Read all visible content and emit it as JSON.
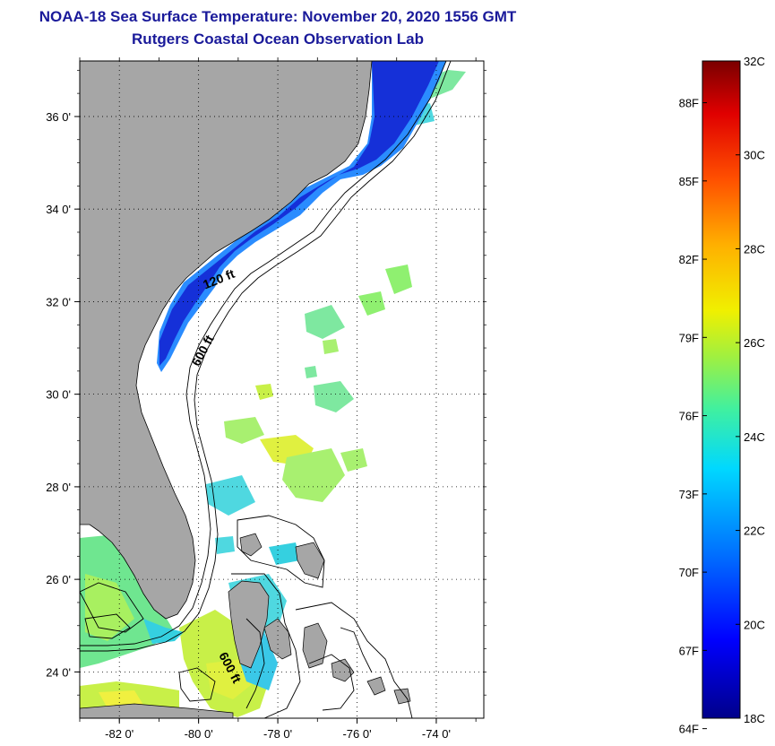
{
  "header": {
    "title": "NOAA-18 Sea Surface Temperature:  November 20, 2020 1556 GMT",
    "subtitle": "Rutgers Coastal Ocean Observation Lab"
  },
  "map": {
    "lon_ticks": [
      {
        "value": -82,
        "label": "-82 0'"
      },
      {
        "value": -80,
        "label": "-80 0'"
      },
      {
        "value": -78,
        "label": "-78 0'"
      },
      {
        "value": -76,
        "label": "-76 0'"
      },
      {
        "value": -74,
        "label": "-74 0'"
      }
    ],
    "lat_ticks": [
      {
        "value": 36,
        "label": "36 0'"
      },
      {
        "value": 34,
        "label": "34 0'"
      },
      {
        "value": 32,
        "label": "32 0'"
      },
      {
        "value": 30,
        "label": "30 0'"
      },
      {
        "value": 28,
        "label": "28 0'"
      },
      {
        "value": 26,
        "label": "26 0'"
      },
      {
        "value": 24,
        "label": "24 0'"
      }
    ],
    "contour_labels": [
      {
        "text": "120 ft",
        "lon": -79.45,
        "lat": 32.4,
        "rotate": -22
      },
      {
        "text": "600 ft",
        "lon": -79.8,
        "lat": 30.9,
        "rotate": -62
      },
      {
        "text": "600 ft",
        "lon": -79.3,
        "lat": 24.05,
        "rotate": 62
      }
    ],
    "colors": {
      "land": "#a6a6a6",
      "cold": "#1530d8",
      "cool": "#2a8cff",
      "cyan": "#35d0e0",
      "teal": "#4fe0b0",
      "green": "#8ff070",
      "yellow": "#d8f040"
    }
  },
  "colorbar": {
    "min_c": 18,
    "max_c": 32,
    "celsius_labels": [
      "32C",
      "30C",
      "28C",
      "26C",
      "24C",
      "22C",
      "20C",
      "18C"
    ],
    "fahrenheit_labels": [
      "88F",
      "85F",
      "82F",
      "79F",
      "76F",
      "73F",
      "70F",
      "67F",
      "64F"
    ]
  }
}
